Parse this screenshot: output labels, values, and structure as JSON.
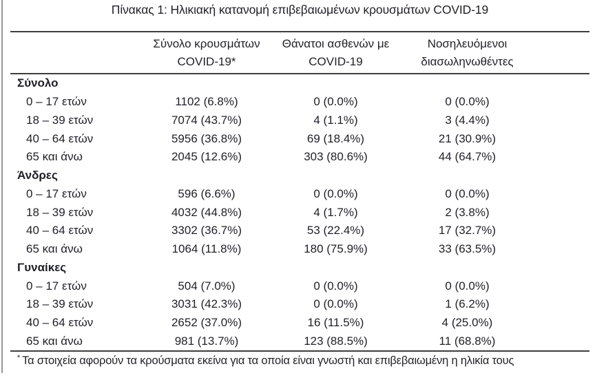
{
  "title": "Πίνακας 1: Ηλικιακή κατανομή επιβεβαιωμένων κρουσμάτων COVID-19",
  "columns": [
    {
      "line1": "Σύνολο κρουσμάτων",
      "line2": "COVID-19*"
    },
    {
      "line1": "Θάνατοι ασθενών με",
      "line2": "COVID-19"
    },
    {
      "line1": "Νοσηλευόμενοι",
      "line2": "διασωληνωθέντες"
    }
  ],
  "groups": [
    {
      "label": "Σύνολο",
      "rows": [
        {
          "age": "0 – 17 ετών",
          "cases": "1102 (6.8%)",
          "deaths": "0 (0.0%)",
          "intubated": "0 (0.0%)"
        },
        {
          "age": "18 – 39 ετών",
          "cases": "7074 (43.7%)",
          "deaths": "4 (1.1%)",
          "intubated": "3 (4.4%)"
        },
        {
          "age": "40 – 64 ετών",
          "cases": "5956 (36.8%)",
          "deaths": "69 (18.4%)",
          "intubated": "21 (30.9%)"
        },
        {
          "age": "65 και άνω",
          "cases": "2045 (12.6%)",
          "deaths": "303 (80.6%)",
          "intubated": "44 (64.7%)"
        }
      ]
    },
    {
      "label": "Άνδρες",
      "rows": [
        {
          "age": "0 – 17 ετών",
          "cases": "596 (6.6%)",
          "deaths": "0 (0.0%)",
          "intubated": "0 (0.0%)"
        },
        {
          "age": "18 – 39 ετών",
          "cases": "4032 (44.8%)",
          "deaths": "4 (1.7%)",
          "intubated": "2 (3.8%)"
        },
        {
          "age": "40 – 64 ετών",
          "cases": "3302 (36.7%)",
          "deaths": "53 (22.4%)",
          "intubated": "17 (32.7%)"
        },
        {
          "age": "65 και άνω",
          "cases": "1064 (11.8%)",
          "deaths": "180 (75.9%)",
          "intubated": "33 (63.5%)"
        }
      ]
    },
    {
      "label": "Γυναίκες",
      "rows": [
        {
          "age": "0 – 17 ετών",
          "cases": "504 (7.0%)",
          "deaths": "0 (0.0%)",
          "intubated": "0 (0.0%)"
        },
        {
          "age": "18 – 39 ετών",
          "cases": "3031 (42.3%)",
          "deaths": "0 (0.0%)",
          "intubated": "1 (6.2%)"
        },
        {
          "age": "40 – 64 ετών",
          "cases": "2652 (37.0%)",
          "deaths": "16 (11.5%)",
          "intubated": "4 (25.0%)"
        },
        {
          "age": "65 και άνω",
          "cases": "981 (13.7%)",
          "deaths": "123 (88.5%)",
          "intubated": "11 (68.8%)"
        }
      ]
    }
  ],
  "footnote": {
    "marker": "*",
    "text": "Τα στοιχεία αφορούν τα κρούσματα εκείνα για τα οποία είναι γνωστή και επιβεβαιωμένη η ηλικία τους"
  },
  "colors": {
    "text": "#1f1f28",
    "rule": "#3d3d3d",
    "edge_line": "#979797"
  }
}
